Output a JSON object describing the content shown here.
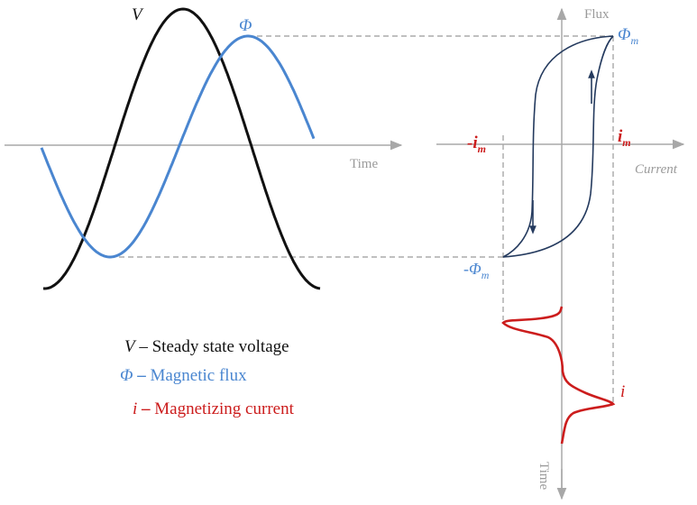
{
  "colors": {
    "voltage": "#111111",
    "flux": "#4a86d0",
    "current": "#cc1d1d",
    "axis": "#a8a8a8",
    "dashed": "#9a9a9a",
    "hysteresis": "#243a5e"
  },
  "curve_labels": {
    "voltage": "V",
    "flux": "Φ"
  },
  "time_axis_label": "Time",
  "flux_axis_label": "Flux",
  "current_axis_label": "Current",
  "time_axis_vertical_label": "Time",
  "markers": {
    "neg_im_main": "-i",
    "neg_im_sub": "m",
    "im_main": "i",
    "im_sub": "m",
    "phim_main": "Φ",
    "phim_sub": "m",
    "neg_phim_main": "-Φ",
    "neg_phim_sub": "m",
    "current_curve_label": "i"
  },
  "legend": [
    {
      "symbol": "V",
      "dash": " – ",
      "text": "Steady state voltage"
    },
    {
      "symbol": "Φ",
      "dash": " – ",
      "text": "Magnetic flux"
    },
    {
      "symbol": "i",
      "dash": " – ",
      "text": "Magnetizing current"
    }
  ]
}
